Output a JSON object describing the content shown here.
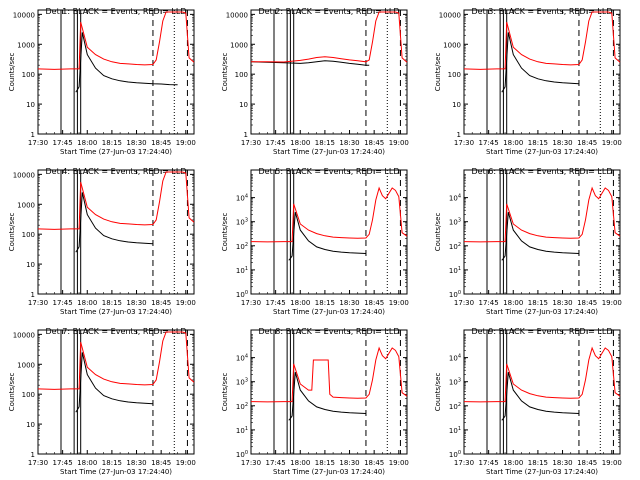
{
  "figure": {
    "time_ticks": [
      "17:30",
      "17:45",
      "18:00",
      "18:15",
      "18:30",
      "18:45",
      "19:00"
    ],
    "xlabel": "Start Time (27-Jun-03 17:24:40)",
    "ylabel": "Counts/sec",
    "colors": {
      "events": "#000000",
      "lld": "#ff0000",
      "axes": "#000000"
    }
  },
  "chart_data": [
    {
      "type": "line",
      "title": "Det 1: BLACK = Events, RED = LLD",
      "yscale": "log",
      "ytick_style": "plain",
      "yticks": [
        "1",
        "10",
        "100",
        "1000",
        "10000"
      ],
      "ylim": [
        1,
        14000
      ],
      "xlim_min": [
        0,
        95
      ],
      "flare_variant": "saturated",
      "series": [
        {
          "name": "Events",
          "x": [
            23,
            24,
            25,
            27,
            30,
            35,
            40,
            45,
            50,
            55,
            60,
            65,
            70,
            75,
            80,
            85,
            90,
            95
          ],
          "y": [
            25,
            30,
            38,
            2500,
            450,
            160,
            90,
            70,
            60,
            55,
            52,
            50,
            48,
            47,
            45,
            44,
            null,
            null
          ]
        },
        {
          "name": "LLD",
          "x": [
            0,
            10,
            20,
            25,
            26,
            30,
            35,
            40,
            45,
            50,
            55,
            60,
            65,
            70,
            72,
            74,
            76,
            78,
            80,
            85,
            88,
            90,
            92,
            95
          ],
          "y": [
            150,
            145,
            150,
            150,
            5500,
            800,
            450,
            320,
            260,
            230,
            220,
            210,
            205,
            210,
            300,
            1200,
            6000,
            12000,
            12000,
            12000,
            12000,
            11000,
            350,
            250
          ]
        }
      ]
    },
    {
      "type": "line",
      "title": "Det 2: BLACK = Events, RED = LLD",
      "yscale": "log",
      "ytick_style": "plain",
      "yticks": [
        "1",
        "10",
        "100",
        "1000",
        "10000"
      ],
      "ylim": [
        1,
        14000
      ],
      "xlim_min": [
        0,
        95
      ],
      "flare_variant": "saturated",
      "series": [
        {
          "name": "Events",
          "x": [
            0,
            10,
            20,
            30,
            35,
            40,
            45,
            50,
            55,
            60,
            65,
            70,
            72
          ],
          "y": [
            260,
            250,
            240,
            230,
            240,
            260,
            280,
            270,
            250,
            230,
            215,
            200,
            200
          ]
        },
        {
          "name": "LLD",
          "x": [
            0,
            10,
            20,
            30,
            35,
            40,
            45,
            50,
            55,
            60,
            65,
            70,
            72,
            74,
            76,
            78,
            80,
            85,
            88,
            90,
            92,
            95
          ],
          "y": [
            260,
            260,
            255,
            290,
            320,
            360,
            380,
            360,
            330,
            300,
            280,
            260,
            300,
            1200,
            6000,
            12000,
            12000,
            12000,
            12000,
            11000,
            350,
            250
          ]
        }
      ]
    },
    {
      "type": "line",
      "title": "Det 3: BLACK = Events, RED = LLD",
      "yscale": "log",
      "ytick_style": "plain",
      "yticks": [
        "1",
        "10",
        "100",
        "1000",
        "10000"
      ],
      "ylim": [
        1,
        14000
      ],
      "xlim_min": [
        0,
        95
      ],
      "flare_variant": "saturated",
      "series": [
        {
          "name": "Events",
          "x": [
            23,
            24,
            25,
            27,
            30,
            35,
            40,
            45,
            50,
            55,
            60,
            65,
            70
          ],
          "y": [
            25,
            30,
            38,
            2500,
            450,
            160,
            90,
            70,
            60,
            55,
            52,
            50,
            48
          ]
        },
        {
          "name": "LLD",
          "x": [
            0,
            10,
            20,
            25,
            26,
            30,
            35,
            40,
            45,
            50,
            55,
            60,
            65,
            70,
            72,
            74,
            76,
            78,
            80,
            85,
            88,
            90,
            92,
            95
          ],
          "y": [
            150,
            145,
            150,
            150,
            5500,
            800,
            450,
            320,
            260,
            230,
            220,
            210,
            205,
            210,
            300,
            1200,
            6000,
            12000,
            12000,
            12000,
            12000,
            11000,
            350,
            250
          ]
        }
      ]
    },
    {
      "type": "line",
      "title": "Det 4: BLACK = Events, RED = LLD",
      "yscale": "log",
      "ytick_style": "plain",
      "yticks": [
        "1",
        "10",
        "100",
        "1000",
        "10000"
      ],
      "ylim": [
        1,
        14000
      ],
      "xlim_min": [
        0,
        95
      ],
      "flare_variant": "saturated",
      "series": [
        {
          "name": "Events",
          "x": [
            23,
            24,
            25,
            27,
            30,
            35,
            40,
            45,
            50,
            55,
            60,
            65,
            70
          ],
          "y": [
            25,
            30,
            38,
            2500,
            450,
            160,
            90,
            70,
            60,
            55,
            52,
            50,
            48
          ]
        },
        {
          "name": "LLD",
          "x": [
            0,
            10,
            20,
            25,
            26,
            30,
            35,
            40,
            45,
            50,
            55,
            60,
            65,
            70,
            72,
            74,
            76,
            78,
            80,
            85,
            88,
            90,
            92,
            95
          ],
          "y": [
            150,
            145,
            150,
            150,
            5500,
            800,
            450,
            320,
            260,
            230,
            220,
            210,
            205,
            210,
            300,
            1200,
            6000,
            12000,
            12000,
            12000,
            12000,
            11000,
            350,
            250
          ]
        }
      ]
    },
    {
      "type": "line",
      "title": "Det 5: BLACK = Events, RED = LLD",
      "yscale": "log",
      "ytick_style": "power",
      "yticks": [
        "10",
        "10",
        "10",
        "10",
        "10"
      ],
      "ytick_exponents": [
        "0",
        "1",
        "2",
        "3",
        "4"
      ],
      "ylim": [
        1,
        140000
      ],
      "xlim_min": [
        0,
        95
      ],
      "flare_variant": "double_peak",
      "series": [
        {
          "name": "Events",
          "x": [
            23,
            24,
            25,
            27,
            30,
            35,
            40,
            45,
            50,
            55,
            60,
            65,
            70
          ],
          "y": [
            25,
            30,
            38,
            2500,
            450,
            160,
            90,
            70,
            60,
            55,
            52,
            50,
            48
          ]
        },
        {
          "name": "LLD",
          "x": [
            0,
            10,
            20,
            25,
            26,
            30,
            35,
            40,
            45,
            50,
            55,
            60,
            65,
            70,
            72,
            74,
            76,
            78,
            80,
            82,
            84,
            86,
            88,
            90,
            92,
            95
          ],
          "y": [
            150,
            145,
            150,
            150,
            5500,
            800,
            450,
            320,
            260,
            230,
            220,
            210,
            205,
            210,
            300,
            1200,
            8000,
            25000,
            12000,
            9000,
            15000,
            25000,
            20000,
            11000,
            350,
            250
          ]
        }
      ]
    },
    {
      "type": "line",
      "title": "Det 6: BLACK = Events, RED = LLD",
      "yscale": "log",
      "ytick_style": "power",
      "yticks": [
        "10",
        "10",
        "10",
        "10",
        "10"
      ],
      "ytick_exponents": [
        "0",
        "1",
        "2",
        "3",
        "4"
      ],
      "ylim": [
        1,
        140000
      ],
      "xlim_min": [
        0,
        95
      ],
      "flare_variant": "double_peak",
      "series": [
        {
          "name": "Events",
          "x": [
            23,
            24,
            25,
            27,
            30,
            35,
            40,
            45,
            50,
            55,
            60,
            65,
            70
          ],
          "y": [
            25,
            30,
            38,
            2500,
            450,
            160,
            90,
            70,
            60,
            55,
            52,
            50,
            48
          ]
        },
        {
          "name": "LLD",
          "x": [
            0,
            10,
            20,
            25,
            26,
            30,
            35,
            40,
            45,
            50,
            55,
            60,
            65,
            70,
            72,
            74,
            76,
            78,
            80,
            82,
            84,
            86,
            88,
            90,
            92,
            95
          ],
          "y": [
            150,
            145,
            150,
            150,
            5500,
            800,
            450,
            320,
            260,
            230,
            220,
            210,
            205,
            210,
            300,
            1200,
            8000,
            25000,
            12000,
            9000,
            15000,
            25000,
            20000,
            11000,
            350,
            250
          ]
        }
      ]
    },
    {
      "type": "line",
      "title": "Det 7: BLACK = Events, RED = LLD",
      "yscale": "log",
      "ytick_style": "plain",
      "yticks": [
        "1",
        "10",
        "100",
        "1000",
        "10000"
      ],
      "ylim": [
        1,
        14000
      ],
      "xlim_min": [
        0,
        95
      ],
      "flare_variant": "saturated",
      "series": [
        {
          "name": "Events",
          "x": [
            23,
            24,
            25,
            27,
            30,
            35,
            40,
            45,
            50,
            55,
            60,
            65,
            70
          ],
          "y": [
            25,
            30,
            38,
            2500,
            450,
            160,
            90,
            70,
            60,
            55,
            52,
            50,
            48
          ]
        },
        {
          "name": "LLD",
          "x": [
            0,
            10,
            20,
            25,
            26,
            30,
            35,
            40,
            45,
            50,
            55,
            60,
            65,
            70,
            72,
            74,
            76,
            78,
            80,
            85,
            88,
            90,
            92,
            95
          ],
          "y": [
            150,
            145,
            150,
            150,
            5500,
            800,
            450,
            320,
            260,
            230,
            220,
            210,
            205,
            210,
            300,
            1200,
            6000,
            12000,
            12000,
            12000,
            12000,
            11000,
            350,
            250
          ]
        }
      ]
    },
    {
      "type": "line",
      "title": "Det 8: BLACK = Events, RED = LLD",
      "yscale": "log",
      "ytick_style": "power",
      "yticks": [
        "10",
        "10",
        "10",
        "10",
        "10"
      ],
      "ytick_exponents": [
        "0",
        "1",
        "2",
        "3",
        "4"
      ],
      "ylim": [
        1,
        140000
      ],
      "xlim_min": [
        0,
        95
      ],
      "flare_variant": "double_peak",
      "series": [
        {
          "name": "Events",
          "x": [
            23,
            24,
            25,
            27,
            30,
            35,
            40,
            45,
            50,
            55,
            60,
            65,
            70
          ],
          "y": [
            25,
            30,
            38,
            2500,
            450,
            160,
            90,
            70,
            60,
            55,
            52,
            50,
            48
          ]
        },
        {
          "name": "LLD",
          "x": [
            0,
            10,
            20,
            25,
            26,
            30,
            35,
            37,
            38,
            40,
            45,
            47,
            48,
            50,
            55,
            60,
            65,
            70,
            72,
            74,
            76,
            78,
            80,
            82,
            84,
            86,
            88,
            90,
            92,
            95
          ],
          "y": [
            150,
            145,
            150,
            150,
            5500,
            800,
            450,
            450,
            8000,
            8000,
            8000,
            8000,
            300,
            230,
            220,
            210,
            205,
            210,
            300,
            1200,
            8000,
            25000,
            12000,
            9000,
            15000,
            25000,
            20000,
            11000,
            350,
            250
          ]
        }
      ]
    },
    {
      "type": "line",
      "title": "Det 9: BLACK = Events, RED = LLD",
      "yscale": "log",
      "ytick_style": "power",
      "yticks": [
        "10",
        "10",
        "10",
        "10",
        "10"
      ],
      "ytick_exponents": [
        "0",
        "1",
        "2",
        "3",
        "4"
      ],
      "ylim": [
        1,
        140000
      ],
      "xlim_min": [
        0,
        95
      ],
      "flare_variant": "double_peak",
      "series": [
        {
          "name": "Events",
          "x": [
            23,
            24,
            25,
            27,
            30,
            35,
            40,
            45,
            50,
            55,
            60,
            65,
            70
          ],
          "y": [
            25,
            30,
            38,
            2500,
            450,
            160,
            90,
            70,
            60,
            55,
            52,
            50,
            48
          ]
        },
        {
          "name": "LLD",
          "x": [
            0,
            10,
            20,
            25,
            26,
            30,
            35,
            40,
            45,
            50,
            55,
            60,
            65,
            70,
            72,
            74,
            76,
            78,
            80,
            82,
            84,
            86,
            88,
            90,
            92,
            95
          ],
          "y": [
            150,
            145,
            150,
            150,
            5500,
            800,
            450,
            320,
            260,
            230,
            220,
            210,
            205,
            210,
            300,
            1200,
            8000,
            25000,
            12000,
            9000,
            15000,
            25000,
            20000,
            11000,
            350,
            250
          ]
        }
      ]
    }
  ],
  "reference_lines": {
    "solid_minutes": [
      14,
      22,
      24,
      26
    ],
    "dashed_minutes": [
      70,
      91
    ],
    "dotted_minutes": [
      83
    ]
  }
}
